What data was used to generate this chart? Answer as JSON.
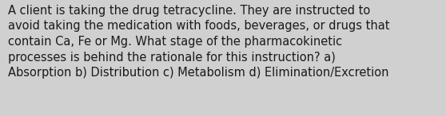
{
  "lines": [
    "A client is taking the drug tetracycline. They are instructed to",
    "avoid taking the medication with foods, beverages, or drugs that",
    "contain Ca, Fe or Mg. What stage of the pharmacokinetic",
    "processes is behind the rationale for this instruction? a)",
    "Absorption b) Distribution c) Metabolism d) Elimination/Excretion"
  ],
  "background_color": "#d0d0d0",
  "text_color": "#1a1a1a",
  "font_size": 10.5,
  "fig_width": 5.58,
  "fig_height": 1.46,
  "dpi": 100
}
